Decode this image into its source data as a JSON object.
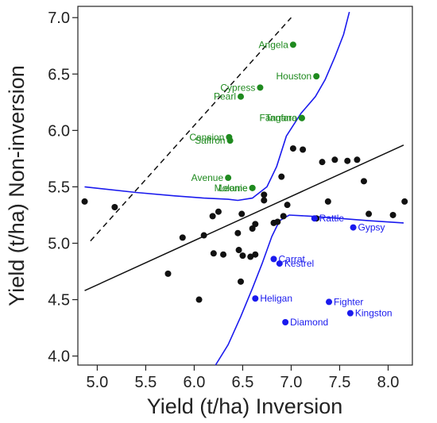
{
  "chart_data": {
    "type": "scatter",
    "xlabel": "Yield (t/ha) Inversion",
    "ylabel": "Yield (t/ha) Non-inversion",
    "xlim": [
      4.8,
      8.25
    ],
    "ylim": [
      3.92,
      7.1
    ],
    "xticks": [
      "5.0",
      "5.5",
      "6.0",
      "6.5",
      "7.0",
      "7.5",
      "8.0"
    ],
    "yticks": [
      "4.0",
      "4.5",
      "5.0",
      "5.5",
      "6.0",
      "6.5",
      "7.0"
    ],
    "grid": false,
    "colors": {
      "unlabelled": "#111111",
      "above": "#1f8a1f",
      "below": "#1a1aee",
      "curves": "#1a1aee",
      "regression": "#111111",
      "reference": "#111111"
    },
    "series": [
      {
        "color": "#111111",
        "points": [
          [
            4.87,
            5.37
          ],
          [
            5.18,
            5.32
          ],
          [
            5.73,
            4.73
          ],
          [
            5.88,
            5.05
          ],
          [
            6.05,
            4.5
          ],
          [
            6.1,
            5.07
          ],
          [
            6.19,
            5.24
          ],
          [
            6.2,
            4.91
          ],
          [
            6.25,
            5.28
          ],
          [
            6.3,
            4.9
          ],
          [
            6.45,
            5.09
          ],
          [
            6.46,
            4.94
          ],
          [
            6.48,
            4.66
          ],
          [
            6.49,
            5.26
          ],
          [
            6.5,
            4.89
          ],
          [
            6.58,
            4.88
          ],
          [
            6.6,
            5.13
          ],
          [
            6.63,
            5.17
          ],
          [
            6.63,
            4.9
          ],
          [
            6.72,
            5.43
          ],
          [
            6.72,
            5.38
          ],
          [
            6.82,
            5.18
          ],
          [
            6.86,
            5.19
          ],
          [
            6.9,
            5.59
          ],
          [
            6.92,
            5.24
          ],
          [
            6.96,
            5.34
          ],
          [
            7.02,
            5.84
          ],
          [
            7.12,
            5.83
          ],
          [
            7.26,
            5.22
          ],
          [
            7.32,
            5.72
          ],
          [
            7.38,
            5.37
          ],
          [
            7.45,
            5.74
          ],
          [
            7.58,
            5.73
          ],
          [
            7.68,
            5.74
          ],
          [
            7.75,
            5.55
          ],
          [
            7.8,
            5.26
          ],
          [
            8.05,
            5.25
          ],
          [
            8.17,
            5.37
          ]
        ]
      },
      {
        "color": "#1f8a1f",
        "points": [
          {
            "x": 7.02,
            "y": 6.76,
            "label": "Angela"
          },
          {
            "x": 7.26,
            "y": 6.48,
            "label": "Houston"
          },
          {
            "x": 6.68,
            "y": 6.38,
            "label": "Cypress"
          },
          {
            "x": 6.48,
            "y": 6.3,
            "label": "Pearl"
          },
          {
            "x": 7.11,
            "y": 6.11,
            "label": "Tanfara"
          },
          {
            "x": 7.11,
            "y": 6.11,
            "label": "Fangano"
          },
          {
            "x": 6.36,
            "y": 5.94,
            "label": "Cansion"
          },
          {
            "x": 6.37,
            "y": 5.91,
            "label": "Saffron"
          },
          {
            "x": 6.35,
            "y": 5.58,
            "label": "Avenue"
          },
          {
            "x": 6.6,
            "y": 5.49,
            "label": "Molanie"
          },
          {
            "x": 6.6,
            "y": 5.49,
            "label": "Leome"
          }
        ]
      },
      {
        "color": "#1a1aee",
        "points": [
          {
            "x": 7.24,
            "y": 5.22,
            "label": "Rattle"
          },
          {
            "x": 7.64,
            "y": 5.14,
            "label": "Gypsy"
          },
          {
            "x": 6.82,
            "y": 4.86,
            "label": "Carrat"
          },
          {
            "x": 6.88,
            "y": 4.82,
            "label": "Kestrel"
          },
          {
            "x": 6.63,
            "y": 4.51,
            "label": "Heligan"
          },
          {
            "x": 7.39,
            "y": 4.48,
            "label": "Fighter"
          },
          {
            "x": 7.61,
            "y": 4.38,
            "label": "Kingston"
          },
          {
            "x": 6.94,
            "y": 4.3,
            "label": "Diamond"
          }
        ]
      }
    ],
    "lines": [
      {
        "style": "dashed",
        "color": "#111111",
        "from": [
          4.93,
          5.02
        ],
        "to": [
          7.0,
          7.0
        ]
      },
      {
        "style": "solid",
        "color": "#111111",
        "from": [
          4.87,
          4.58
        ],
        "to": [
          8.16,
          5.87
        ]
      }
    ],
    "curves": [
      {
        "color": "#1a1aee",
        "points": [
          [
            4.87,
            5.5
          ],
          [
            5.4,
            5.45
          ],
          [
            5.8,
            5.42
          ],
          [
            6.1,
            5.4
          ],
          [
            6.35,
            5.39
          ],
          [
            6.45,
            5.38
          ],
          [
            6.6,
            5.4
          ],
          [
            6.75,
            5.5
          ],
          [
            6.85,
            5.68
          ],
          [
            6.95,
            5.95
          ],
          [
            7.1,
            6.15
          ],
          [
            7.25,
            6.3
          ],
          [
            7.35,
            6.45
          ],
          [
            7.45,
            6.65
          ],
          [
            7.54,
            6.85
          ],
          [
            7.6,
            7.05
          ]
        ]
      },
      {
        "color": "#1a1aee",
        "points": [
          [
            6.22,
            3.92
          ],
          [
            6.35,
            4.1
          ],
          [
            6.48,
            4.35
          ],
          [
            6.6,
            4.6
          ],
          [
            6.7,
            4.82
          ],
          [
            6.8,
            5.06
          ],
          [
            6.88,
            5.2
          ],
          [
            6.98,
            5.25
          ],
          [
            7.2,
            5.24
          ],
          [
            7.5,
            5.22
          ],
          [
            7.8,
            5.2
          ],
          [
            8.16,
            5.18
          ]
        ]
      }
    ]
  }
}
